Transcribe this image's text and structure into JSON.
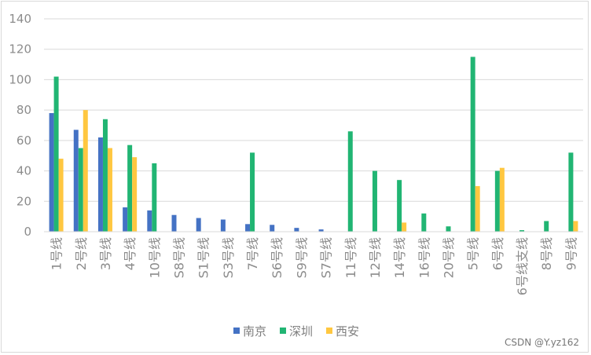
{
  "chart_data": {
    "type": "bar",
    "categories": [
      "1号线",
      "2号线",
      "3号线",
      "4号线",
      "10号线",
      "S8号线",
      "S1号线",
      "S3号线",
      "7号线",
      "S6号线",
      "S9号线",
      "S7号线",
      "11号线",
      "12号线",
      "14号线",
      "16号线",
      "20号线",
      "5号线",
      "6号线",
      "6号线支线",
      "8号线",
      "9号线"
    ],
    "series": [
      {
        "name": "南京",
        "color": "#4472c4",
        "values": [
          78,
          67,
          62,
          16,
          14,
          11,
          9,
          8,
          5,
          4.5,
          2.5,
          1.5,
          null,
          null,
          null,
          null,
          null,
          null,
          null,
          null,
          null,
          null
        ]
      },
      {
        "name": "深圳",
        "color": "#21b573",
        "values": [
          102,
          55,
          74,
          57,
          45,
          null,
          null,
          null,
          52,
          null,
          null,
          null,
          66,
          40,
          34,
          12,
          3.5,
          115,
          40,
          1,
          7,
          52
        ]
      },
      {
        "name": "西安",
        "color": "#ffc740",
        "values": [
          48,
          80,
          55,
          49,
          null,
          null,
          null,
          null,
          null,
          null,
          null,
          null,
          null,
          null,
          6,
          null,
          null,
          30,
          42,
          null,
          null,
          7
        ]
      }
    ],
    "ylim": [
      0,
      140
    ],
    "yticks": [
      "0",
      "20",
      "40",
      "60",
      "80",
      "100",
      "120",
      "140"
    ],
    "grid": true,
    "legend_position": "bottom",
    "title": "",
    "xlabel": "",
    "ylabel": ""
  },
  "watermark": "CSDN @Y.yz162"
}
